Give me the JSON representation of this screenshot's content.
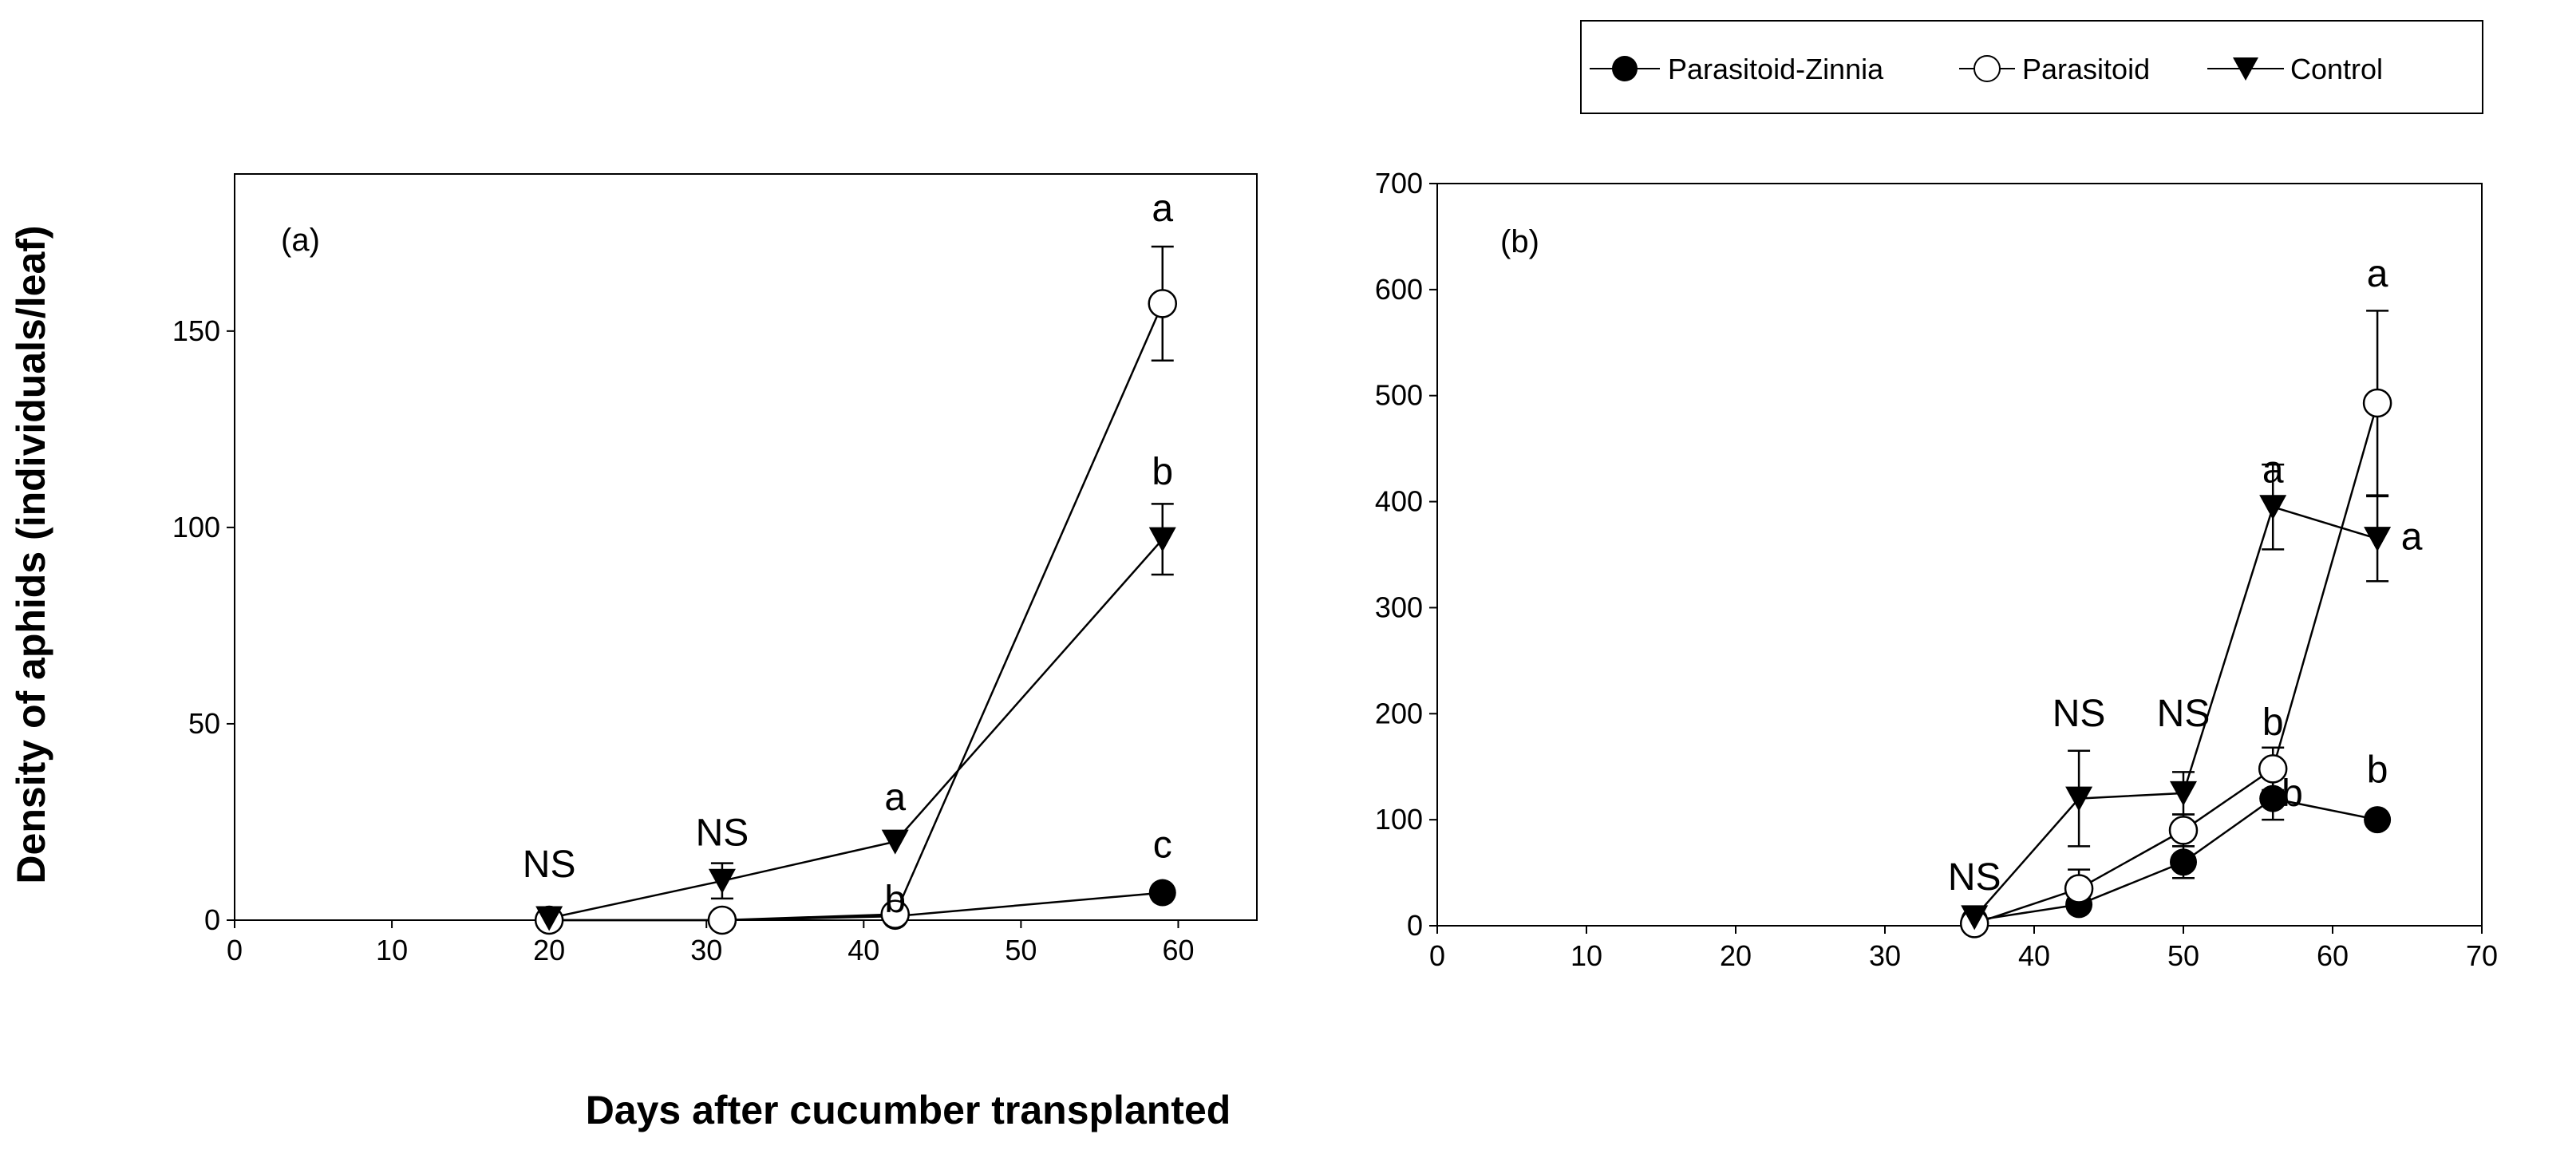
{
  "figure": {
    "ylabel": "Density of aphids (individuals/leaf)",
    "xlabel": "Days after cucumber transplanted"
  },
  "legend": {
    "items": [
      {
        "name": "Parasitoid-Zinnia",
        "marker": "filled-circle"
      },
      {
        "name": "Parasitoid",
        "marker": "open-circle"
      },
      {
        "name": "Control",
        "marker": "filled-triangle-down"
      }
    ]
  },
  "chart_data": [
    {
      "type": "line",
      "panel_label": "(a)",
      "xlim": [
        0,
        65
      ],
      "ylim": [
        0,
        190
      ],
      "xticks": [
        0,
        10,
        20,
        30,
        40,
        50,
        60
      ],
      "yticks": [
        0,
        50,
        100,
        150
      ],
      "series": [
        {
          "name": "Parasitoid-Zinnia",
          "x": [
            20,
            31,
            42,
            59
          ],
          "y": [
            0,
            0,
            1,
            7
          ],
          "err": [
            0,
            0,
            0,
            0
          ]
        },
        {
          "name": "Parasitoid",
          "x": [
            20,
            31,
            42,
            59
          ],
          "y": [
            0,
            0,
            1.5,
            157
          ],
          "err": [
            0,
            0,
            0,
            14.5
          ]
        },
        {
          "name": "Control",
          "x": [
            20,
            31,
            42,
            59
          ],
          "y": [
            0.5,
            10,
            20,
            97
          ],
          "err": [
            1.5,
            4.5,
            0,
            9
          ]
        }
      ],
      "annotations": [
        {
          "text": "NS",
          "x": 20,
          "y": 11
        },
        {
          "text": "NS",
          "x": 31,
          "y": 19
        },
        {
          "text": "a",
          "x": 42,
          "y": 28
        },
        {
          "text": "b",
          "x": 42,
          "y": 2
        },
        {
          "text": "c",
          "x": 59,
          "y": 16
        },
        {
          "text": "a",
          "x": 59,
          "y": 178
        },
        {
          "text": "b",
          "x": 59,
          "y": 111
        }
      ]
    },
    {
      "type": "line",
      "panel_label": "(b)",
      "xlim": [
        0,
        70
      ],
      "ylim": [
        0,
        700
      ],
      "xticks": [
        0,
        10,
        20,
        30,
        40,
        50,
        60,
        70
      ],
      "yticks": [
        0,
        100,
        200,
        300,
        400,
        500,
        600,
        700
      ],
      "series": [
        {
          "name": "Parasitoid-Zinnia",
          "x": [
            36,
            43,
            50,
            56,
            63
          ],
          "y": [
            5,
            20,
            60,
            120,
            100
          ],
          "err": [
            0,
            0,
            15,
            20,
            0
          ]
        },
        {
          "name": "Parasitoid",
          "x": [
            36,
            43,
            50,
            56,
            63
          ],
          "y": [
            2,
            35,
            90,
            148,
            493
          ],
          "err": [
            0,
            18,
            15,
            20,
            87
          ]
        },
        {
          "name": "Control",
          "x": [
            36,
            43,
            50,
            56,
            63
          ],
          "y": [
            8,
            120,
            125,
            395,
            365
          ],
          "err": [
            0,
            45,
            20,
            40,
            40
          ]
        }
      ],
      "annotations": [
        {
          "text": "NS",
          "x": 36,
          "y": 34
        },
        {
          "text": "NS",
          "x": 43,
          "y": 188
        },
        {
          "text": "NS",
          "x": 50,
          "y": 188
        },
        {
          "text": "a",
          "x": 56,
          "y": 418
        },
        {
          "text": "b",
          "x": 56,
          "y": 180
        },
        {
          "text": "b",
          "x": 57.3,
          "y": 113
        },
        {
          "text": "a",
          "x": 63,
          "y": 603
        },
        {
          "text": "a",
          "x": 65.3,
          "y": 355
        },
        {
          "text": "b",
          "x": 63,
          "y": 135
        }
      ]
    }
  ]
}
